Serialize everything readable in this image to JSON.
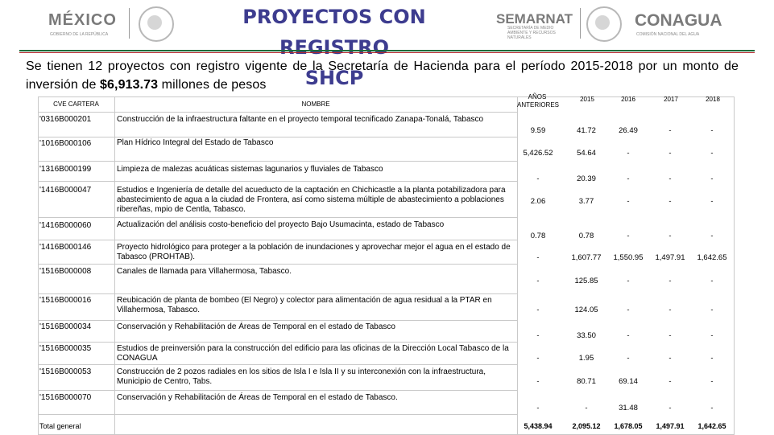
{
  "header": {
    "title_line1": "PROYECTOS  CON REGISTRO",
    "title_line2": "SHCP",
    "logos": {
      "mexico": {
        "name": "MÉXICO",
        "sub": "GOBIERNO DE LA REPÚBLICA"
      },
      "semarnat": {
        "name": "SEMARNAT",
        "sub": "SECRETARÍA DE MEDIO AMBIENTE Y RECURSOS NATURALES"
      },
      "conagua": {
        "name": "CONAGUA",
        "sub": "COMISIÓN NACIONAL DEL AGUA"
      }
    },
    "colors": {
      "title": "#3d3c8f",
      "rule_green": "#1f6b3a",
      "rule_red": "#b3262c"
    }
  },
  "intro": {
    "text_before": "Se tienen 12 proyectos con registro vigente de la Secretaría de Hacienda para el período 2015-2018 por un monto de inversión de ",
    "amount": "$6,913.73",
    "text_after": " millones de pesos"
  },
  "table": {
    "headers": {
      "cve": "CVE CARTERA",
      "nombre": "NOMBRE",
      "anios": "AÑOS ANTERIORES",
      "y2015": "2015",
      "y2016": "2016",
      "y2017": "2017",
      "y2018": "2018"
    },
    "rows": [
      {
        "cve": "'0316B000201",
        "nombre": "Construcción de la infraestructura faltante en el proyecto temporal tecnificado Zanapa-Tonalá, Tabasco",
        "anios": "9.59",
        "y2015": "41.72",
        "y2016": "26.49",
        "y2017": "-",
        "y2018": "-"
      },
      {
        "cve": "'1016B000106",
        "nombre": "Plan Hídrico Integral del Estado de Tabasco",
        "anios": "5,426.52",
        "y2015": "54.64",
        "y2016": "-",
        "y2017": "-",
        "y2018": "-"
      },
      {
        "cve": "'1316B000199",
        "nombre": "Limpieza de malezas acuáticas sistemas lagunarios y fluviales de Tabasco",
        "anios": "-",
        "y2015": "20.39",
        "y2016": "-",
        "y2017": "-",
        "y2018": "-"
      },
      {
        "cve": "'1416B000047",
        "nombre": "Estudios e Ingeniería de detalle del acueducto de la captación en Chichicastle a la planta potabilizadora para abastecimiento de agua a la ciudad de Frontera, así como sistema múltiple de abastecimiento a poblaciones ribereñas, mpio de Centla, Tabasco.",
        "anios": "2.06",
        "y2015": "3.77",
        "y2016": "-",
        "y2017": "-",
        "y2018": "-"
      },
      {
        "cve": "'1416B000060",
        "nombre": "Actualización del análisis costo-beneficio del proyecto Bajo Usumacinta, estado de Tabasco",
        "anios": "0.78",
        "y2015": "0.78",
        "y2016": "-",
        "y2017": "-",
        "y2018": "-"
      },
      {
        "cve": "'1416B000146",
        "nombre": "Proyecto hidrológico para proteger a la población de inundaciones y aprovechar mejor el agua en el estado de Tabasco (PROHTAB).",
        "anios": "-",
        "y2015": "1,607.77",
        "y2016": "1,550.95",
        "y2017": "1,497.91",
        "y2018": "1,642.65"
      },
      {
        "cve": "'1516B000008",
        "nombre": "Canales de llamada para Villahermosa, Tabasco.",
        "anios": "-",
        "y2015": "125.85",
        "y2016": "-",
        "y2017": "-",
        "y2018": "-"
      },
      {
        "cve": "'1516B000016",
        "nombre": "Reubicación de planta de bombeo (El Negro) y colector para alimentación de  agua residual a la PTAR en Villahermosa, Tabasco.",
        "anios": "-",
        "y2015": "124.05",
        "y2016": "-",
        "y2017": "-",
        "y2018": "-"
      },
      {
        "cve": "'1516B000034",
        "nombre": "Conservación y Rehabilitación de Áreas de Temporal en el estado de Tabasco",
        "anios": "-",
        "y2015": "33.50",
        "y2016": "-",
        "y2017": "-",
        "y2018": "-"
      },
      {
        "cve": "'1516B000035",
        "nombre": "Estudios de preinversión para la construcción del edificio para las oficinas de la Dirección Local Tabasco de la CONAGUA",
        "anios": "-",
        "y2015": "1.95",
        "y2016": "-",
        "y2017": "-",
        "y2018": "-"
      },
      {
        "cve": "'1516B000053",
        "nombre": "Construcción de 2 pozos radiales en los sitios de Isla I e Isla II y su interconexión con la infraestructura, Municipio de Centro, Tabs.",
        "anios": "-",
        "y2015": "80.71",
        "y2016": "69.14",
        "y2017": "-",
        "y2018": "-"
      },
      {
        "cve": "'1516B000070",
        "nombre": "Conservación y Rehabilitación de Áreas de Temporal en el estado de Tabasco.",
        "anios": "-",
        "y2015": "-",
        "y2016": "31.48",
        "y2017": "-",
        "y2018": "-"
      }
    ],
    "total": {
      "label": "Total general",
      "anios": "5,438.94",
      "y2015": "2,095.12",
      "y2016": "1,678.05",
      "y2017": "1,497.91",
      "y2018": "1,642.65"
    }
  }
}
